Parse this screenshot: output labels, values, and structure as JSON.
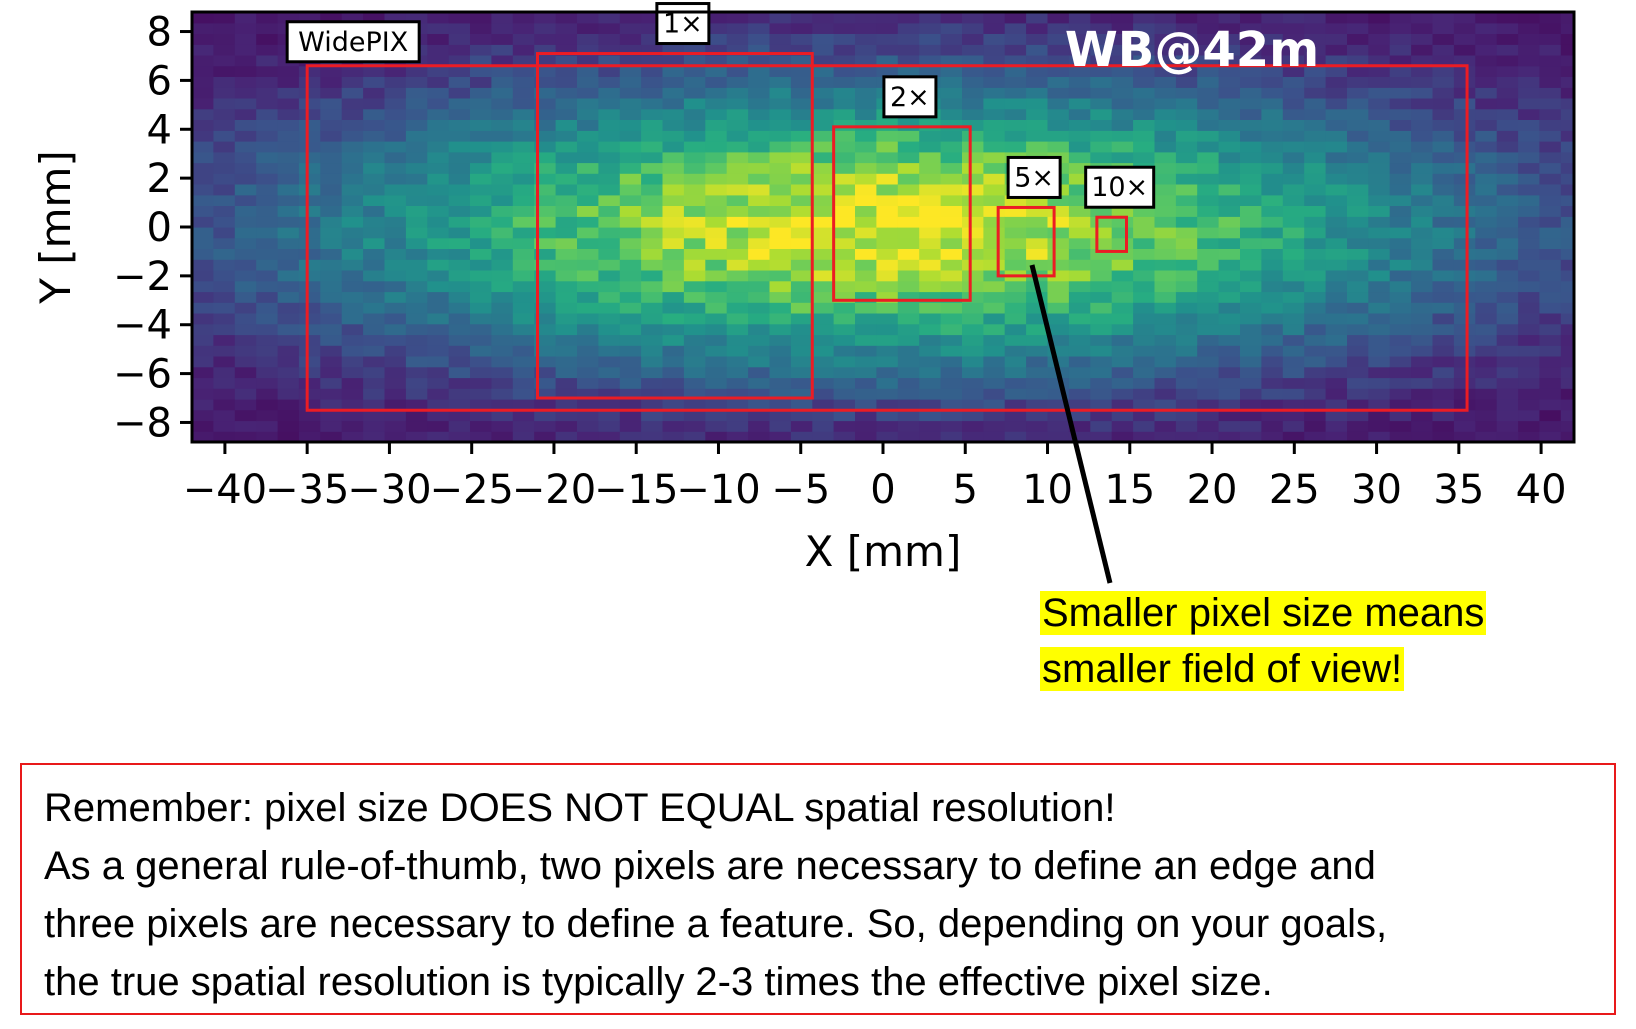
{
  "chart_data": {
    "type": "heatmap",
    "title": "",
    "xlabel": "X [mm]",
    "ylabel": "Y [mm]",
    "xlim": [
      -42,
      42
    ],
    "ylim": [
      -8.8,
      8.8
    ],
    "xticks": [
      -40,
      -35,
      -30,
      -25,
      -20,
      -15,
      -10,
      -5,
      0,
      5,
      10,
      15,
      20,
      25,
      30,
      35,
      40
    ],
    "xtick_labels": [
      "−40",
      "−35",
      "−30",
      "−25",
      "−20",
      "−15",
      "−10",
      "−5",
      "0",
      "5",
      "10",
      "15",
      "20",
      "25",
      "30",
      "35",
      "40"
    ],
    "yticks": [
      8,
      6,
      4,
      2,
      0,
      -2,
      -4,
      -6,
      -8
    ],
    "ytick_labels": [
      "8",
      "6",
      "4",
      "2",
      "0",
      "−2",
      "−4",
      "−6",
      "−8"
    ],
    "colormap": "viridis",
    "beam_center": [
      0,
      0
    ],
    "beam_sigma_mm": [
      24,
      4
    ],
    "annotation": "WB@42m",
    "regions": [
      {
        "label": "WidePIX",
        "x": [
          -35,
          35.5
        ],
        "y": [
          -7.5,
          6.6
        ]
      },
      {
        "label": "1×",
        "x": [
          -21,
          -4.3
        ],
        "y": [
          -7,
          7.1
        ]
      },
      {
        "label": "2×",
        "x": [
          -3,
          5.3
        ],
        "y": [
          -3,
          4.1
        ]
      },
      {
        "label": "5×",
        "x": [
          7,
          10.4
        ],
        "y": [
          -2,
          0.8
        ]
      },
      {
        "label": "10×",
        "x": [
          13,
          14.8
        ],
        "y": [
          -1,
          0.4
        ]
      }
    ],
    "region_color": "#ec1c24"
  },
  "callout": {
    "line1": "Smaller pixel size means",
    "line2": "smaller field of view!"
  },
  "note": {
    "line1": "Remember: pixel size DOES NOT EQUAL spatial resolution!",
    "line2": "As a general rule-of-thumb, two pixels are necessary to define an edge and",
    "line3": "three pixels are necessary to define a feature. So, depending on your goals,",
    "line4": "the true spatial resolution is typically 2-3 times the effective pixel size."
  }
}
